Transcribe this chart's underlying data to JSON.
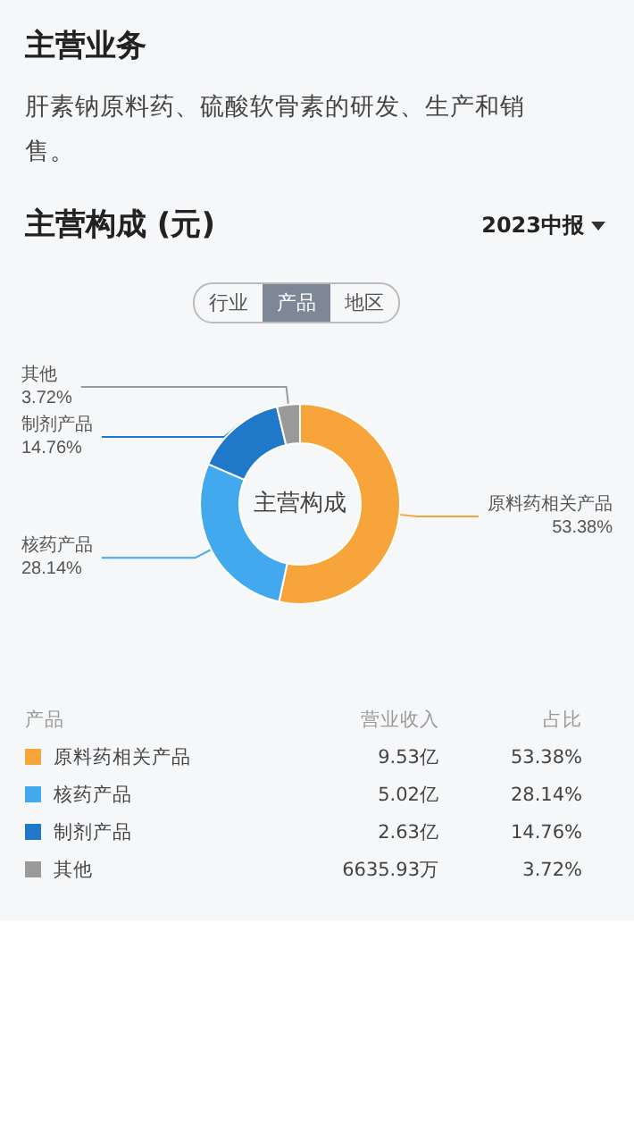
{
  "chart_data": {
    "type": "donut",
    "title": "主营业务",
    "subtitle": "肝素钠原料药、硫酸软骨素的研发、生产和销售。",
    "annotations": [
      "主营构成 (元)",
      "2023中报",
      "行业",
      "产品",
      "地区",
      "主营构成",
      "产品",
      "营业收入",
      "占比",
      "9.53亿",
      "5.02亿",
      "2.63亿",
      "6635.93万"
    ],
    "categories": [
      "原料药相关产品",
      "核药产品",
      "制剂产品",
      "其他"
    ],
    "values": [
      53.38,
      28.14,
      14.76,
      3.72
    ],
    "colors": [
      "#f7a53a",
      "#43a9ee",
      "#1f78c8",
      "#9a9a9a"
    ],
    "value_labels": [
      "53.38%",
      "28.14%",
      "14.76%",
      "3.72%"
    ],
    "legend": "bottom"
  }
}
